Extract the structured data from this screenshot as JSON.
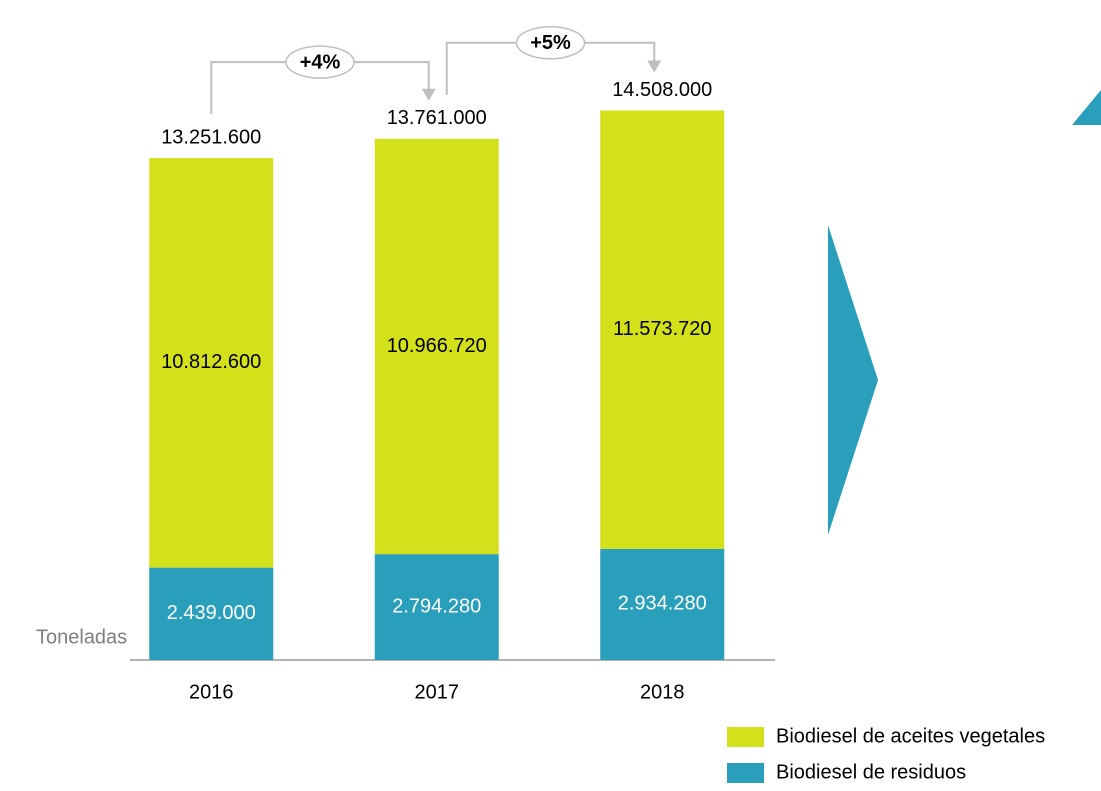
{
  "chart_data": {
    "type": "stacked_bar",
    "categories": [
      "2016",
      "2017",
      "2018"
    ],
    "series": [
      {
        "name": "Biodiesel de residuos",
        "color": "#2a9fbc",
        "values": [
          2439000,
          2794280,
          2934280
        ],
        "value_labels": [
          "2.439.000",
          "2.794.280",
          "2.934.280"
        ]
      },
      {
        "name": "Biodiesel de aceites vegetales",
        "color": "#d4e01a",
        "values": [
          10812600,
          10966720,
          11573720
        ],
        "value_labels": [
          "10.812.600",
          "10.966.720",
          "11.573.720"
        ]
      }
    ],
    "totals": [
      13251600,
      13761000,
      14508000
    ],
    "total_labels": [
      "13.251.600",
      "13.761.000",
      "14.508.000"
    ],
    "annotations": [
      "+4%",
      "+5%"
    ],
    "y_label": "Toneladas",
    "ylim": [
      0,
      16000000
    ]
  }
}
